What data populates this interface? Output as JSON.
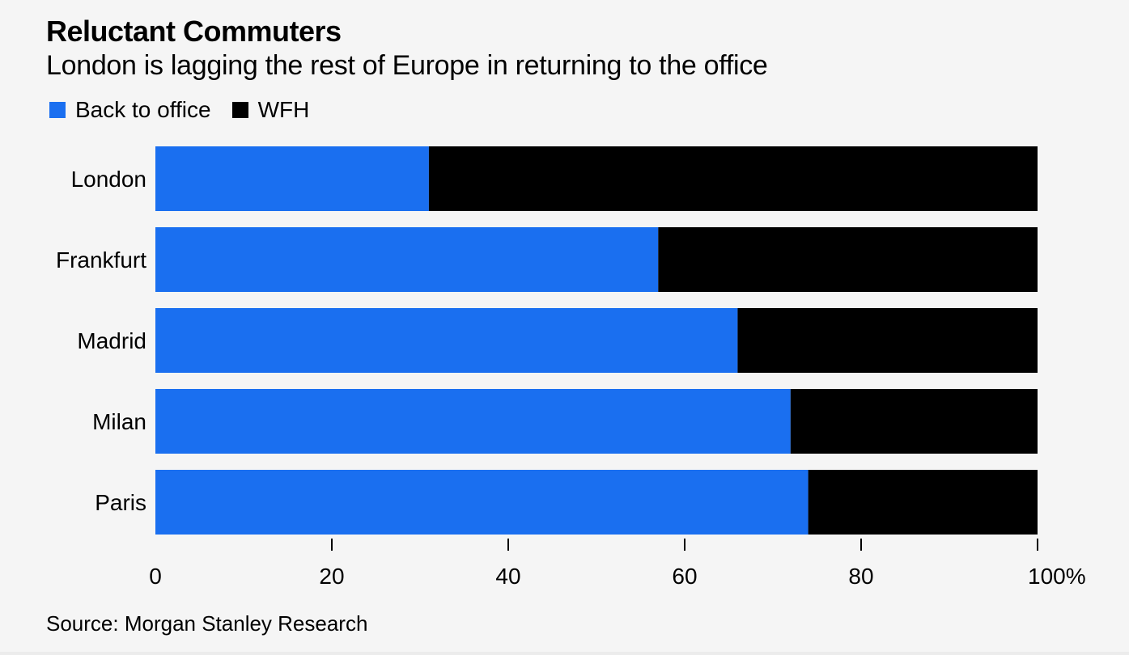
{
  "header": {
    "title": "Reluctant Commuters",
    "subtitle": "London is lagging the rest of Europe in returning to the office"
  },
  "legend": [
    {
      "label": "Back to office",
      "color": "#1a6ff0"
    },
    {
      "label": "WFH",
      "color": "#000000"
    }
  ],
  "footer": {
    "source": "Source: Morgan Stanley Research"
  },
  "chart_data": {
    "type": "bar",
    "orientation": "horizontal",
    "stacked": true,
    "title": "Reluctant Commuters",
    "subtitle": "London is lagging the rest of Europe in returning to the office",
    "categories": [
      "London",
      "Frankfurt",
      "Madrid",
      "Milan",
      "Paris"
    ],
    "series": [
      {
        "name": "Back to office",
        "color": "#1a6ff0",
        "values": [
          31,
          57,
          66,
          72,
          74
        ]
      },
      {
        "name": "WFH",
        "color": "#000000",
        "values": [
          69,
          43,
          34,
          28,
          26
        ]
      }
    ],
    "xlim": [
      0,
      100
    ],
    "xticks": [
      0,
      20,
      40,
      60,
      80,
      100
    ],
    "xtick_labels": [
      "0",
      "20",
      "40",
      "60",
      "80",
      "100%"
    ],
    "xlabel": "",
    "ylabel": "",
    "grid": false,
    "legend_position": "top-left",
    "source": "Source: Morgan Stanley Research"
  }
}
